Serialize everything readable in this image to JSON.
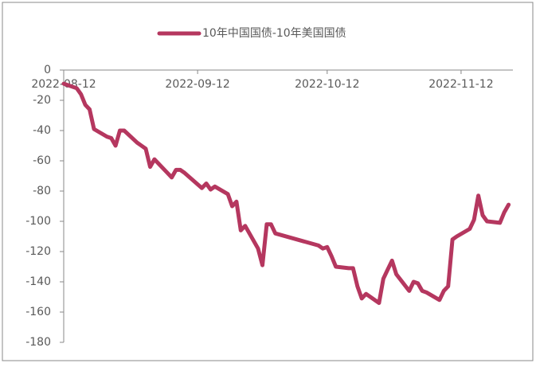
{
  "chart_data": {
    "type": "line",
    "x": [
      "2022-08-12",
      "2022-08-15",
      "2022-08-16",
      "2022-08-17",
      "2022-08-18",
      "2022-08-19",
      "2022-08-22",
      "2022-08-23",
      "2022-08-24",
      "2022-08-25",
      "2022-08-26",
      "2022-08-29",
      "2022-08-30",
      "2022-08-31",
      "2022-09-01",
      "2022-09-02",
      "2022-09-05",
      "2022-09-06",
      "2022-09-07",
      "2022-09-08",
      "2022-09-09",
      "2022-09-13",
      "2022-09-14",
      "2022-09-15",
      "2022-09-16",
      "2022-09-19",
      "2022-09-20",
      "2022-09-21",
      "2022-09-22",
      "2022-09-23",
      "2022-09-26",
      "2022-09-27",
      "2022-09-28",
      "2022-09-29",
      "2022-09-30",
      "2022-10-10",
      "2022-10-11",
      "2022-10-12",
      "2022-10-13",
      "2022-10-14",
      "2022-10-17",
      "2022-10-18",
      "2022-10-19",
      "2022-10-20",
      "2022-10-21",
      "2022-10-24",
      "2022-10-25",
      "2022-10-26",
      "2022-10-27",
      "2022-10-28",
      "2022-10-31",
      "2022-11-01",
      "2022-11-02",
      "2022-11-03",
      "2022-11-04",
      "2022-11-07",
      "2022-11-08",
      "2022-11-09",
      "2022-11-10",
      "2022-11-11",
      "2022-11-14",
      "2022-11-15",
      "2022-11-16",
      "2022-11-17",
      "2022-11-18",
      "2022-11-21",
      "2022-11-22",
      "2022-11-23"
    ],
    "series": [
      {
        "name": "10年中国国债-10年美国国债",
        "color": "#b5375f",
        "values": [
          -9,
          -12,
          -16,
          -23,
          -26,
          -39,
          -44,
          -45,
          -50,
          -40,
          -40,
          -48,
          -50,
          -52,
          -64,
          -59,
          -68,
          -71,
          -66,
          -66,
          -68,
          -78,
          -75,
          -79,
          -77,
          -82,
          -90,
          -87,
          -106,
          -103,
          -118,
          -129,
          -102,
          -102,
          -108,
          -116,
          -118,
          -117,
          -123,
          -130,
          -131,
          -131,
          -143,
          -151,
          -148,
          -154,
          -138,
          -132,
          -126,
          -135,
          -146,
          -140,
          -141,
          -146,
          -147,
          -152,
          -146,
          -143,
          -112,
          -110,
          -105,
          -99,
          -83,
          -96,
          -100,
          -101,
          -94,
          -89
        ]
      }
    ],
    "xlim": [
      "2022-08-12",
      "2022-11-24"
    ],
    "xticks": [
      "2022-08-12",
      "2022-09-12",
      "2022-10-12",
      "2022-11-12"
    ],
    "ylim": [
      -180,
      0
    ],
    "yticks": [
      0,
      -20,
      -40,
      -60,
      -80,
      -100,
      -120,
      -140,
      -160,
      -180
    ],
    "legend": "top"
  }
}
